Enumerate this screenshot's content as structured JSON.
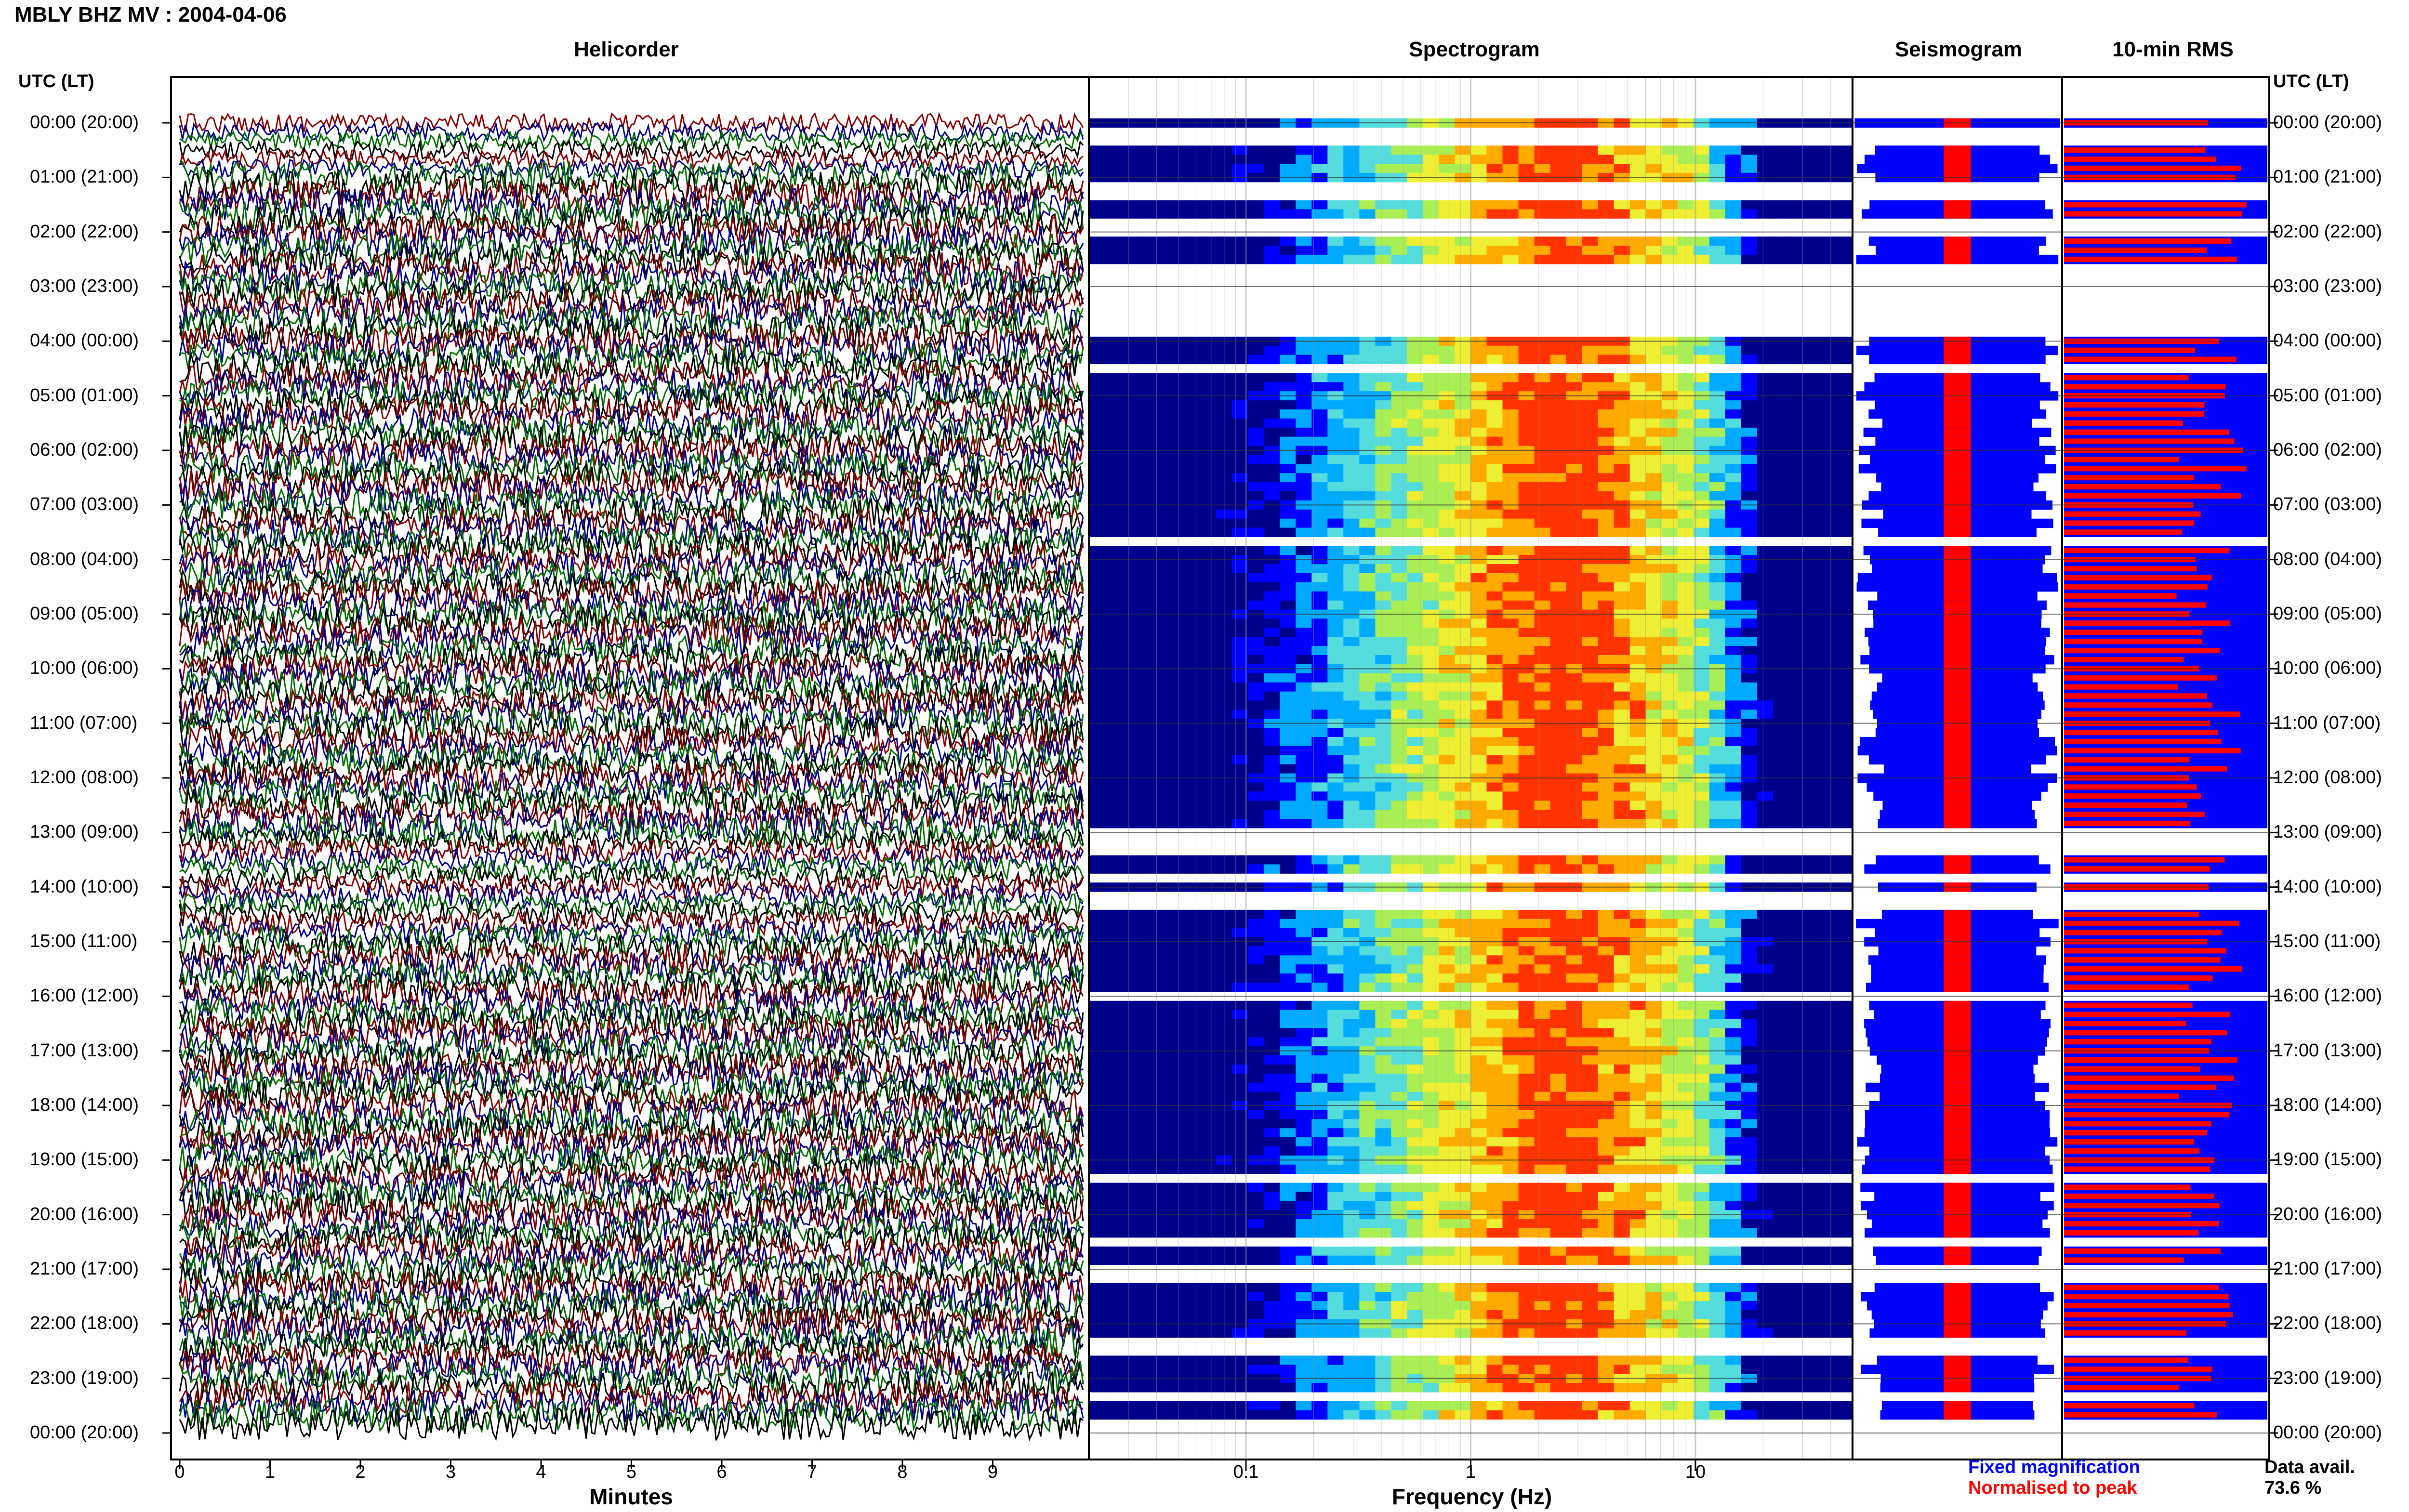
{
  "header": {
    "title": "MBLY BHZ MV : 2004-04-06",
    "panel_titles": {
      "helicorder": "Helicorder",
      "spectrogram": "Spectrogram",
      "seismogram": "Seismogram",
      "rms": "10-min RMS"
    },
    "utc_head_left": "UTC (LT)",
    "utc_head_right": "UTC (LT)"
  },
  "time_labels": [
    "00:00 (20:00)",
    "01:00 (21:00)",
    "02:00 (22:00)",
    "03:00 (23:00)",
    "04:00 (00:00)",
    "05:00 (01:00)",
    "06:00 (02:00)",
    "07:00 (03:00)",
    "08:00 (04:00)",
    "09:00 (05:00)",
    "10:00 (06:00)",
    "11:00 (07:00)",
    "12:00 (08:00)",
    "13:00 (09:00)",
    "14:00 (10:00)",
    "15:00 (11:00)",
    "16:00 (12:00)",
    "17:00 (13:00)",
    "18:00 (14:00)",
    "19:00 (15:00)",
    "20:00 (16:00)",
    "21:00 (17:00)",
    "22:00 (18:00)",
    "23:00 (19:00)",
    "00:00 (20:00)"
  ],
  "legend": {
    "fixed": "Fixed magnification",
    "normalised": "Normalised to peak",
    "fixed_color": "#0000ff",
    "normalised_color": "#ff0000",
    "data_avail_label": "Data avail.",
    "data_avail_value": "73.6 %"
  },
  "chart_data": [
    {
      "type": "line",
      "title": "Helicorder",
      "xlabel": "Minutes",
      "x_ticks": [
        "0",
        "1",
        "2",
        "3",
        "4",
        "5",
        "6",
        "7",
        "8",
        "9"
      ],
      "xlim": [
        0,
        10
      ],
      "trace_colors": [
        "#8b0000",
        "#00008b",
        "#007000",
        "#000000"
      ]
    },
    {
      "type": "heatmap",
      "title": "Spectrogram",
      "xlabel": "Frequency (Hz)",
      "x_scale": "log",
      "x_ticks": [
        "0.1",
        "1",
        "10"
      ],
      "xlim": [
        0.02,
        50
      ],
      "colormap": [
        "#00008b",
        "#0000ff",
        "#00aaff",
        "#55dddd",
        "#aaee55",
        "#eeee33",
        "#ffaa00",
        "#ff3300"
      ]
    },
    {
      "type": "bar",
      "title": "Seismogram",
      "series": [
        {
          "name": "Fixed magnification",
          "color": "#0000ff"
        },
        {
          "name": "Normalised to peak",
          "color": "#ff0000"
        }
      ]
    },
    {
      "type": "bar",
      "title": "10-min RMS",
      "series": [
        {
          "name": "Fixed magnification",
          "color": "#0000ff"
        },
        {
          "name": "Normalised to peak",
          "color": "#ff0000"
        }
      ],
      "data_rows": [
        [
          0.0,
          1
        ],
        [
          0.17,
          0
        ],
        [
          0.33,
          0
        ],
        [
          0.5,
          1
        ],
        [
          0.67,
          1
        ],
        [
          0.83,
          1
        ],
        [
          1.0,
          1
        ],
        [
          1.17,
          0
        ],
        [
          1.33,
          0
        ],
        [
          1.5,
          1
        ],
        [
          1.67,
          1
        ],
        [
          1.83,
          0
        ],
        [
          2.0,
          0
        ],
        [
          2.17,
          1
        ],
        [
          2.33,
          1
        ],
        [
          2.5,
          1
        ],
        [
          2.67,
          0
        ],
        [
          2.83,
          0
        ],
        [
          3.0,
          0
        ],
        [
          3.17,
          0
        ],
        [
          3.33,
          0
        ],
        [
          3.5,
          0
        ],
        [
          3.67,
          0
        ],
        [
          3.83,
          0
        ],
        [
          4.0,
          1
        ],
        [
          4.17,
          1
        ],
        [
          4.33,
          1
        ],
        [
          4.5,
          0
        ],
        [
          4.67,
          1
        ],
        [
          4.83,
          1
        ],
        [
          5.0,
          1
        ],
        [
          5.17,
          1
        ],
        [
          5.33,
          1
        ],
        [
          5.5,
          1
        ],
        [
          5.67,
          1
        ],
        [
          5.83,
          1
        ],
        [
          6.0,
          1
        ],
        [
          6.17,
          1
        ],
        [
          6.33,
          1
        ],
        [
          6.5,
          1
        ],
        [
          6.67,
          1
        ],
        [
          6.83,
          1
        ],
        [
          7.0,
          1
        ],
        [
          7.17,
          1
        ],
        [
          7.33,
          1
        ],
        [
          7.5,
          1
        ],
        [
          7.67,
          0
        ],
        [
          7.83,
          1
        ],
        [
          8.0,
          1
        ],
        [
          8.17,
          1
        ],
        [
          8.33,
          1
        ],
        [
          8.5,
          1
        ],
        [
          8.67,
          1
        ],
        [
          8.83,
          1
        ],
        [
          9.0,
          1
        ],
        [
          9.17,
          1
        ],
        [
          9.33,
          1
        ],
        [
          9.5,
          1
        ],
        [
          9.67,
          1
        ],
        [
          9.83,
          1
        ],
        [
          10.0,
          1
        ],
        [
          10.17,
          1
        ],
        [
          10.33,
          1
        ],
        [
          10.5,
          1
        ],
        [
          10.67,
          1
        ],
        [
          10.83,
          1
        ],
        [
          11.0,
          1
        ],
        [
          11.17,
          1
        ],
        [
          11.33,
          1
        ],
        [
          11.5,
          1
        ],
        [
          11.67,
          1
        ],
        [
          11.83,
          1
        ],
        [
          12.0,
          1
        ],
        [
          12.17,
          1
        ],
        [
          12.33,
          1
        ],
        [
          12.5,
          1
        ],
        [
          12.67,
          1
        ],
        [
          12.83,
          1
        ],
        [
          13.0,
          0
        ],
        [
          13.17,
          0
        ],
        [
          13.33,
          0
        ],
        [
          13.5,
          1
        ],
        [
          13.67,
          1
        ],
        [
          13.83,
          0
        ],
        [
          14.0,
          1
        ],
        [
          14.17,
          0
        ],
        [
          14.33,
          0
        ],
        [
          14.5,
          1
        ],
        [
          14.67,
          1
        ],
        [
          14.83,
          1
        ],
        [
          15.0,
          1
        ],
        [
          15.17,
          1
        ],
        [
          15.33,
          1
        ],
        [
          15.5,
          1
        ],
        [
          15.67,
          1
        ],
        [
          15.83,
          1
        ],
        [
          16.0,
          0
        ],
        [
          16.17,
          1
        ],
        [
          16.33,
          1
        ],
        [
          16.5,
          1
        ],
        [
          16.67,
          1
        ],
        [
          16.83,
          1
        ],
        [
          17.0,
          1
        ],
        [
          17.17,
          1
        ],
        [
          17.33,
          1
        ],
        [
          17.5,
          1
        ],
        [
          17.67,
          1
        ],
        [
          17.83,
          1
        ],
        [
          18.0,
          1
        ],
        [
          18.17,
          1
        ],
        [
          18.33,
          1
        ],
        [
          18.5,
          1
        ],
        [
          18.67,
          1
        ],
        [
          18.83,
          1
        ],
        [
          19.0,
          1
        ],
        [
          19.17,
          1
        ],
        [
          19.33,
          0
        ],
        [
          19.5,
          1
        ],
        [
          19.67,
          1
        ],
        [
          19.83,
          1
        ],
        [
          20.0,
          1
        ],
        [
          20.17,
          1
        ],
        [
          20.33,
          1
        ],
        [
          20.5,
          0
        ],
        [
          20.67,
          1
        ],
        [
          20.83,
          1
        ],
        [
          21.0,
          0
        ],
        [
          21.17,
          0
        ],
        [
          21.33,
          1
        ],
        [
          21.5,
          1
        ],
        [
          21.67,
          1
        ],
        [
          21.83,
          1
        ],
        [
          22.0,
          1
        ],
        [
          22.17,
          1
        ],
        [
          22.33,
          0
        ],
        [
          22.5,
          0
        ],
        [
          22.67,
          1
        ],
        [
          22.83,
          1
        ],
        [
          23.0,
          1
        ],
        [
          23.17,
          1
        ],
        [
          23.33,
          0
        ],
        [
          23.5,
          1
        ],
        [
          23.67,
          1
        ],
        [
          23.83,
          0
        ]
      ]
    }
  ]
}
